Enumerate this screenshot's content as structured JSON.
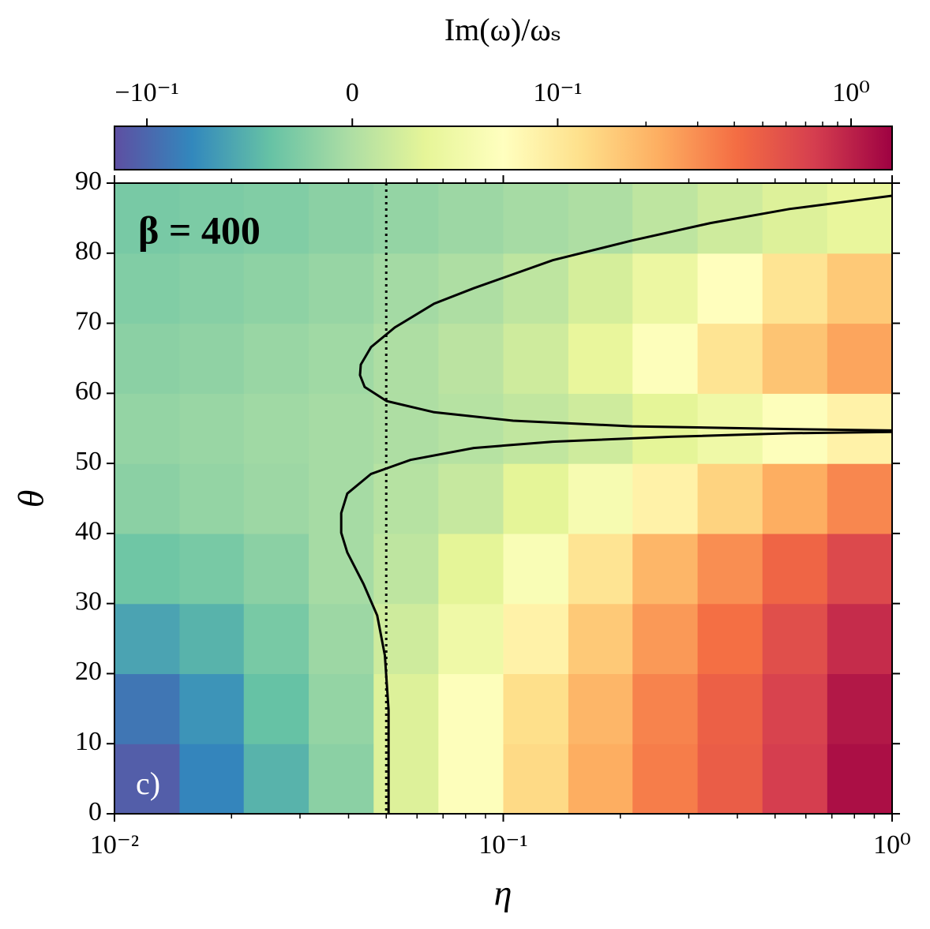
{
  "chart_data": {
    "type": "heatmap",
    "colorbar_label": "Im(ω)/ωₛ",
    "x_label": "η",
    "y_label": "θ",
    "annotations": [
      "β = 400",
      "c)"
    ],
    "xscale": "log",
    "xlim": [
      0.01,
      1
    ],
    "xticks": [
      {
        "value": 0.01,
        "label": "10⁻²"
      },
      {
        "value": 0.1,
        "label": "10⁻¹"
      },
      {
        "value": 1,
        "label": "10⁰"
      }
    ],
    "xminorticks": [
      0.02,
      0.03,
      0.04,
      0.05,
      0.06,
      0.07,
      0.08,
      0.09,
      0.2,
      0.3,
      0.4,
      0.5,
      0.6,
      0.7,
      0.8,
      0.9
    ],
    "ylim": [
      0,
      90
    ],
    "yticks": [
      0,
      10,
      20,
      30,
      40,
      50,
      60,
      70,
      80,
      90
    ],
    "xbins": [
      0.01,
      0.0147,
      0.0215,
      0.0316,
      0.0464,
      0.0681,
      0.1,
      0.147,
      0.215,
      0.316,
      0.464,
      0.681,
      1
    ],
    "ybins": [
      0,
      10,
      20,
      30,
      40,
      50,
      60,
      70,
      80,
      90
    ],
    "z": [
      [
        -0.11,
        -0.08,
        -0.05,
        -0.02,
        0.03,
        0.07,
        0.13,
        0.22,
        0.35,
        0.5,
        0.75,
        1.2
      ],
      [
        -0.09,
        -0.07,
        -0.04,
        -0.015,
        0.03,
        0.07,
        0.12,
        0.2,
        0.33,
        0.48,
        0.7,
        1.1
      ],
      [
        -0.06,
        -0.05,
        -0.03,
        -0.01,
        0.02,
        0.05,
        0.09,
        0.16,
        0.27,
        0.4,
        0.6,
        0.9
      ],
      [
        -0.035,
        -0.03,
        -0.02,
        -0.005,
        0.01,
        0.035,
        0.065,
        0.11,
        0.2,
        0.3,
        0.45,
        0.65
      ],
      [
        -0.02,
        -0.015,
        -0.01,
        -0.005,
        0.005,
        0.015,
        0.035,
        0.06,
        0.09,
        0.14,
        0.22,
        0.32
      ],
      [
        -0.015,
        -0.012,
        -0.008,
        -0.005,
        0.0,
        0.005,
        0.012,
        0.02,
        0.035,
        0.05,
        0.07,
        0.09
      ],
      [
        -0.02,
        -0.017,
        -0.012,
        -0.008,
        0.0,
        0.008,
        0.02,
        0.04,
        0.07,
        0.11,
        0.17,
        0.24
      ],
      [
        -0.025,
        -0.022,
        -0.018,
        -0.013,
        -0.006,
        0.0,
        0.01,
        0.025,
        0.045,
        0.075,
        0.11,
        0.16
      ],
      [
        -0.03,
        -0.028,
        -0.025,
        -0.02,
        -0.015,
        -0.01,
        -0.005,
        0.0,
        0.01,
        0.02,
        0.03,
        0.04
      ]
    ],
    "colormap": [
      "#5e4fa2",
      "#3288bd",
      "#66c2a5",
      "#abdda4",
      "#e6f598",
      "#ffffbf",
      "#fee08b",
      "#fdae61",
      "#f46d43",
      "#d53e4f",
      "#9e0142"
    ],
    "cscale": "symlog",
    "clim": [
      -0.129,
      1.38
    ],
    "linthresh": 0.1,
    "linscale": 0.7,
    "cticks": [
      {
        "value": -0.1,
        "label": "−10⁻¹"
      },
      {
        "value": 0,
        "label": "0"
      },
      {
        "value": 0.1,
        "label": "10⁻¹"
      },
      {
        "value": 1,
        "label": "10⁰"
      }
    ],
    "cminorticks": [
      0.2,
      0.3,
      0.4,
      0.5,
      0.6,
      0.7,
      0.8,
      0.9
    ],
    "contour_color": "#000000",
    "contours": [
      {
        "x": [
          1,
          0.544,
          0.341,
          0.214,
          0.134,
          0.0839,
          0.0664,
          0.0526,
          0.0457,
          0.043,
          0.0428,
          0.044,
          0.0501,
          0.0664,
          0.106,
          0.214,
          0.544,
          1
        ],
        "y": [
          88.2,
          86.3,
          84.3,
          81.8,
          79.0,
          75.0,
          72.8,
          69.4,
          66.6,
          64.1,
          62.6,
          60.9,
          58.9,
          57.3,
          56.1,
          55.3,
          54.9,
          54.7
        ]
      },
      {
        "x": [
          1,
          0.544,
          0.27,
          0.134,
          0.0839,
          0.0577,
          0.0457,
          0.0397,
          0.0383,
          0.0383,
          0.0397,
          0.0437,
          0.0474,
          0.0496,
          0.0507,
          0.0507
        ],
        "y": [
          54.5,
          54.3,
          53.8,
          53.1,
          52.2,
          50.5,
          48.5,
          45.7,
          42.9,
          40.1,
          37.3,
          32.8,
          28.3,
          22.6,
          14.8,
          0
        ]
      }
    ],
    "vline": 0.05
  }
}
